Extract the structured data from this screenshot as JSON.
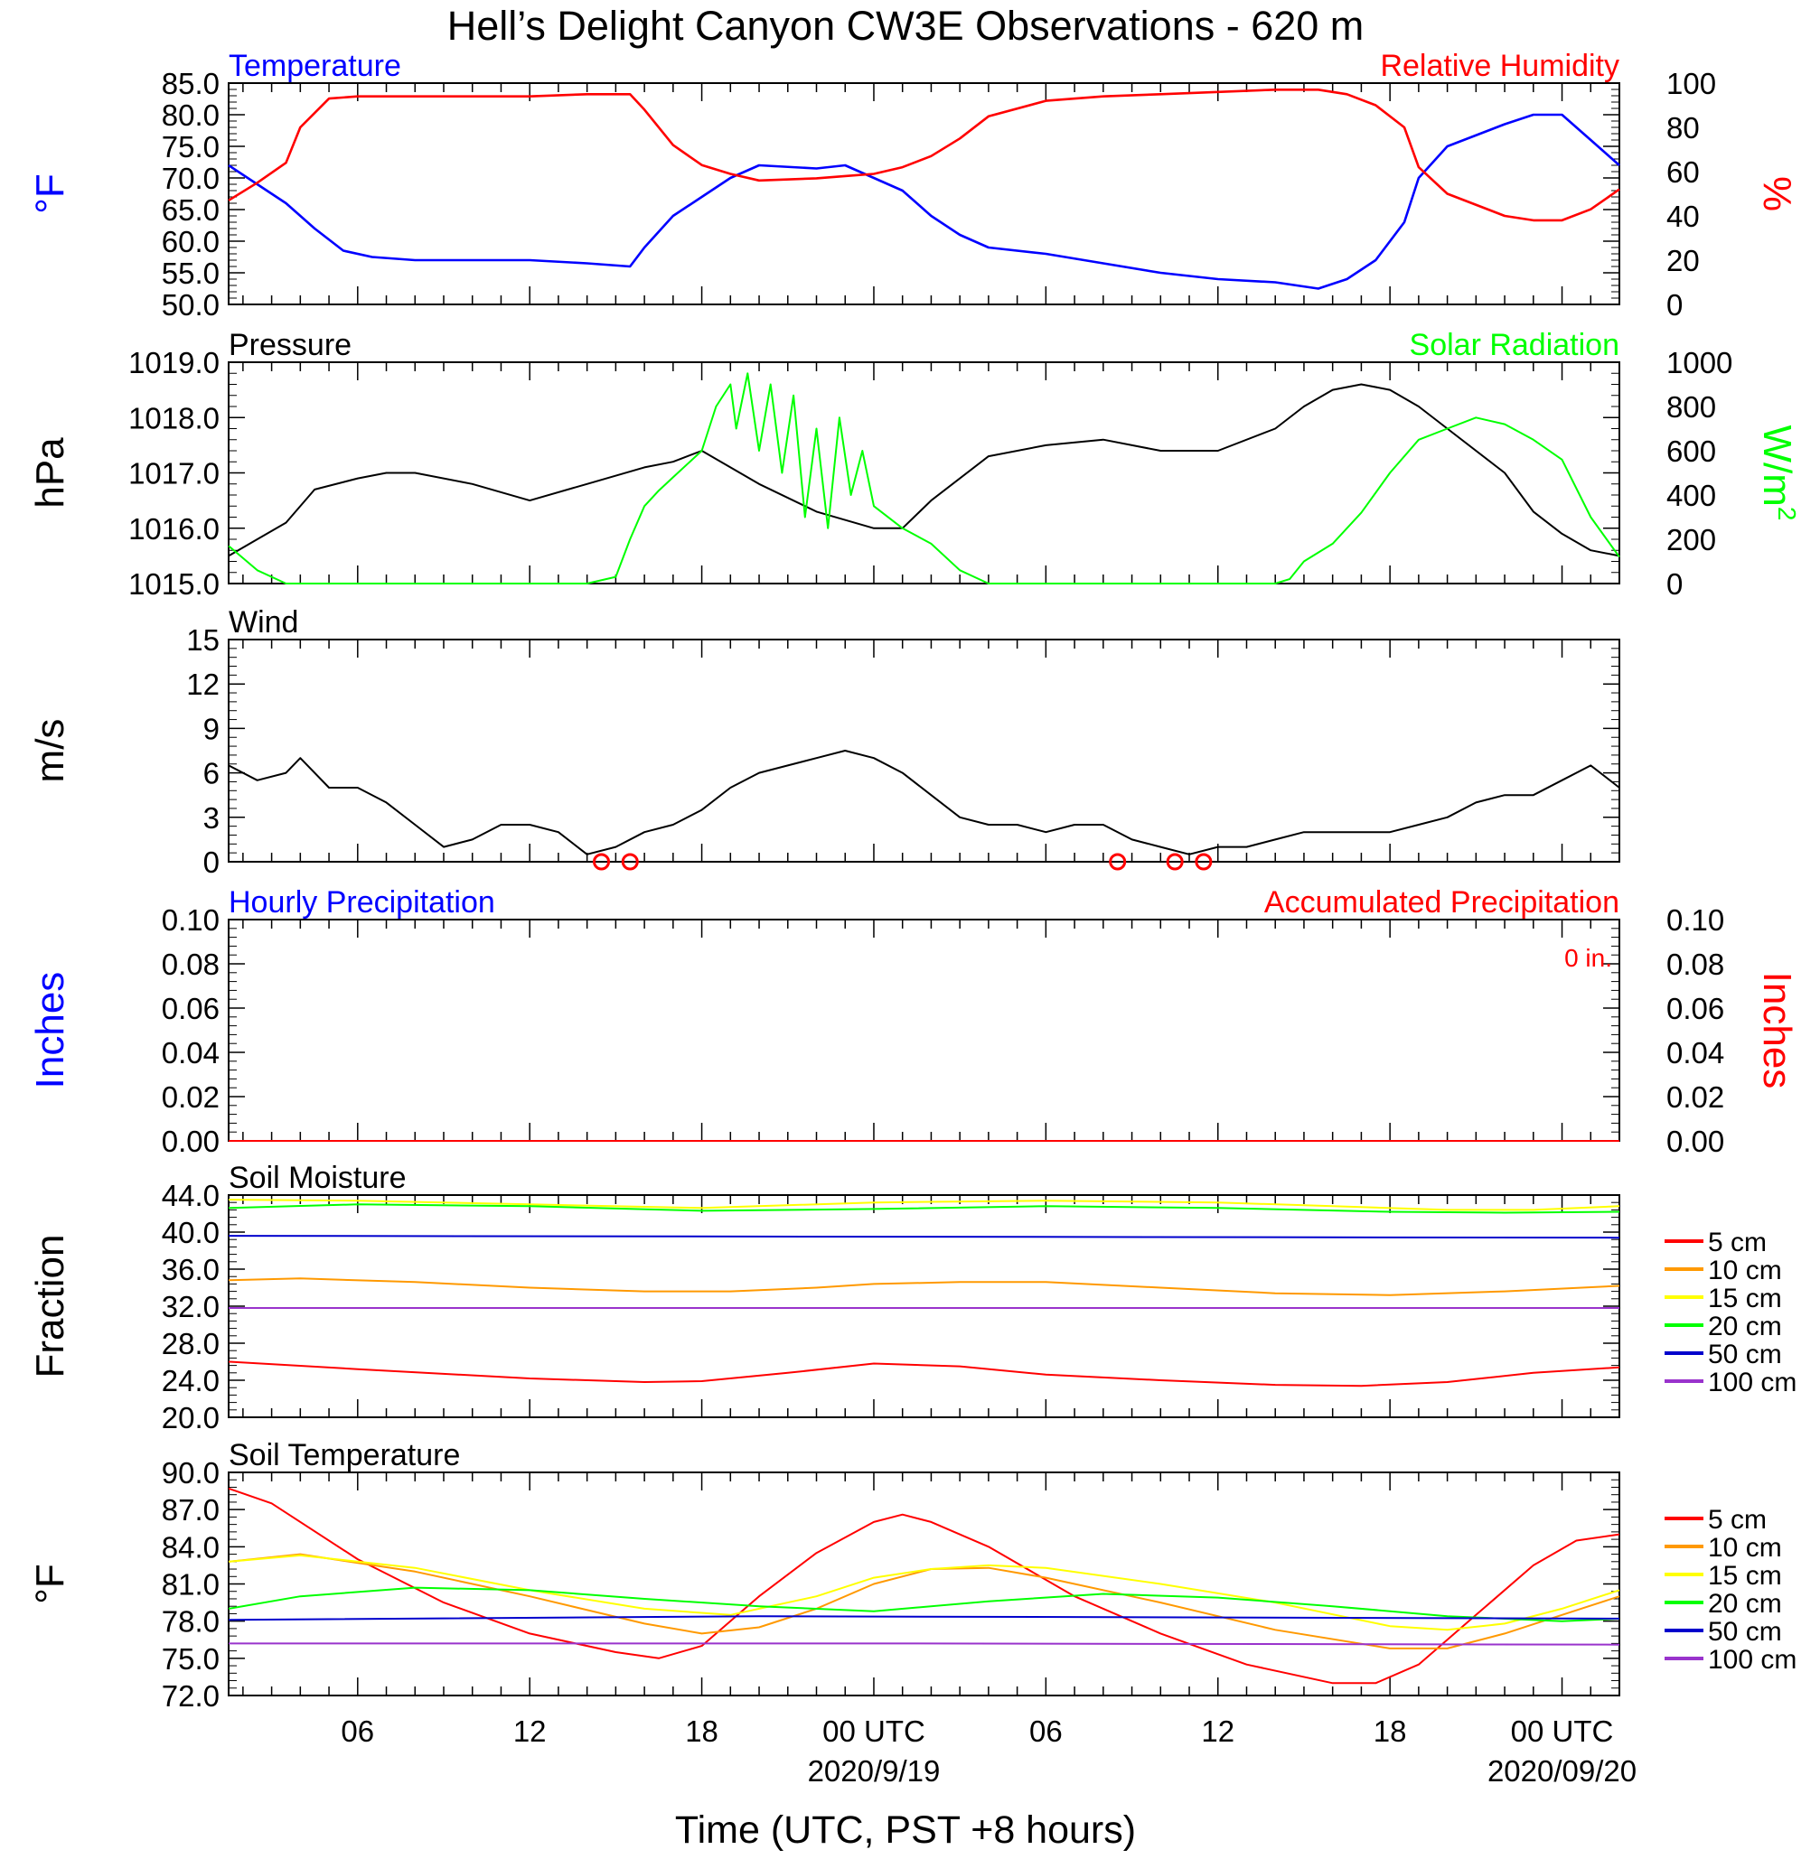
{
  "title": "Hell’s Delight Canyon CW3E Observations - 620 m",
  "xlabel": "Time (UTC, PST +8 hours)",
  "x_range_hours": [
    1.5,
    50
  ],
  "x_ticks": [
    {
      "h": 6,
      "label": "06"
    },
    {
      "h": 12,
      "label": "12"
    },
    {
      "h": 18,
      "label": "18"
    },
    {
      "h": 24,
      "label": "00 UTC",
      "date": "2020/9/19"
    },
    {
      "h": 30,
      "label": "06"
    },
    {
      "h": 36,
      "label": "12"
    },
    {
      "h": 42,
      "label": "18"
    },
    {
      "h": 48,
      "label": "00 UTC",
      "date": "2020/09/20"
    }
  ],
  "colors": {
    "blue": "#0000ff",
    "red": "#ff0000",
    "green": "#00ff00",
    "black": "#000000",
    "orange": "#ff9900",
    "yellow": "#ffff00",
    "purple": "#9933cc",
    "darkblue": "#0000cc"
  },
  "chart_data": [
    {
      "id": "temp_rh",
      "type": "line",
      "title_left": "Temperature",
      "title_right": "Relative Humidity",
      "ylabel_left": "°F",
      "ylabel_right": "%",
      "ylim_left": [
        50,
        85
      ],
      "yticks_left": [
        "50.0",
        "55.0",
        "60.0",
        "65.0",
        "70.0",
        "75.0",
        "80.0",
        "85.0"
      ],
      "ylim_right": [
        0,
        100
      ],
      "yticks_right": [
        "0",
        "20",
        "40",
        "60",
        "80",
        "100"
      ],
      "series": [
        {
          "name": "Temperature",
          "color": "blue",
          "axis": "left",
          "x": [
            1.5,
            2.5,
            3.5,
            4.5,
            5.5,
            6.5,
            8,
            10,
            12,
            14,
            15.5,
            16,
            17,
            18,
            19,
            20,
            22,
            23,
            24,
            25,
            26,
            27,
            28,
            30,
            32,
            34,
            36,
            38,
            39.5,
            40.5,
            41.5,
            42.5,
            43,
            44,
            46,
            47,
            48,
            49,
            50
          ],
          "y": [
            72,
            69,
            66,
            62,
            58.5,
            57.5,
            57,
            57,
            57,
            56.5,
            56,
            59,
            64,
            67,
            70,
            72,
            71.5,
            72,
            70,
            68,
            64,
            61,
            59,
            58,
            56.5,
            55,
            54,
            53.5,
            52.5,
            54,
            57,
            63,
            70,
            75,
            78.5,
            80,
            80,
            76,
            72
          ]
        },
        {
          "name": "Relative Humidity",
          "color": "red",
          "axis": "right",
          "x": [
            1.5,
            2.5,
            3.5,
            4,
            5,
            6,
            8,
            10,
            12,
            14,
            15.5,
            16,
            17,
            18,
            19,
            20,
            22,
            23,
            24,
            25,
            26,
            27,
            28,
            30,
            32,
            34,
            36,
            38,
            39.5,
            40.5,
            41.5,
            42.5,
            43,
            44,
            46,
            47,
            48,
            49,
            50
          ],
          "y": [
            47,
            55,
            64,
            80,
            93,
            94,
            94,
            94,
            94,
            95,
            95,
            88,
            72,
            63,
            59,
            56,
            57,
            58,
            59,
            62,
            67,
            75,
            85,
            92,
            94,
            95,
            96,
            97,
            97,
            95,
            90,
            80,
            62,
            50,
            40,
            38,
            38,
            43,
            52
          ]
        }
      ]
    },
    {
      "id": "pressure_solar",
      "type": "line",
      "title_left": "Pressure",
      "title_right": "Solar Radiation",
      "ylabel_left": "hPa",
      "ylabel_right": "W/m",
      "ylabel_right_sup": "2",
      "ylim_left": [
        1015,
        1019
      ],
      "yticks_left": [
        "1015.0",
        "1016.0",
        "1017.0",
        "1018.0",
        "1019.0"
      ],
      "ylim_right": [
        0,
        1000
      ],
      "yticks_right": [
        "0",
        "200",
        "400",
        "600",
        "800",
        "1000"
      ],
      "series": [
        {
          "name": "Pressure",
          "color": "black",
          "axis": "left",
          "x": [
            1.5,
            2.5,
            3.5,
            4.5,
            6,
            7,
            8,
            10,
            12,
            14,
            16,
            17,
            18,
            19,
            20,
            22,
            24,
            25,
            26,
            28,
            30,
            32,
            34,
            36,
            38,
            39,
            40,
            41,
            42,
            43,
            44,
            46,
            47,
            48,
            49,
            50
          ],
          "y": [
            1015.5,
            1015.8,
            1016.1,
            1016.7,
            1016.9,
            1017.0,
            1017.0,
            1016.8,
            1016.5,
            1016.8,
            1017.1,
            1017.2,
            1017.4,
            1017.1,
            1016.8,
            1016.3,
            1016,
            1016.0,
            1016.5,
            1017.3,
            1017.5,
            1017.6,
            1017.4,
            1017.4,
            1017.8,
            1018.2,
            1018.5,
            1018.6,
            1018.5,
            1018.2,
            1017.8,
            1017.0,
            1016.3,
            1015.9,
            1015.6,
            1015.5
          ]
        },
        {
          "name": "Solar Radiation",
          "color": "green",
          "axis": "right",
          "x": [
            1.5,
            2.5,
            3.5,
            14,
            15,
            15.5,
            16,
            16.5,
            17,
            18,
            18.5,
            19,
            19.2,
            19.6,
            20,
            20.4,
            20.8,
            21.2,
            21.6,
            22,
            22.4,
            22.8,
            23.2,
            23.6,
            24,
            25,
            26,
            27,
            28,
            38,
            38.5,
            39,
            40,
            41,
            42,
            43,
            44,
            45,
            46,
            47,
            48,
            49,
            50
          ],
          "y": [
            170,
            60,
            0,
            0,
            30,
            200,
            350,
            420,
            480,
            600,
            800,
            900,
            700,
            950,
            600,
            900,
            500,
            850,
            300,
            700,
            250,
            750,
            400,
            600,
            350,
            250,
            180,
            60,
            0,
            0,
            20,
            100,
            180,
            320,
            500,
            650,
            700,
            750,
            720,
            650,
            560,
            300,
            120
          ]
        }
      ]
    },
    {
      "id": "wind",
      "type": "line",
      "title_left": "Wind",
      "ylabel_left": "m/s",
      "ylim_left": [
        0,
        15
      ],
      "yticks_left": [
        "0",
        "3",
        "6",
        "9",
        "12",
        "15"
      ],
      "series": [
        {
          "name": "Wind",
          "color": "black",
          "axis": "left",
          "x": [
            1.5,
            2.5,
            3.5,
            4,
            5,
            6,
            7,
            8,
            9,
            10,
            11,
            12,
            13,
            14,
            15,
            16,
            17,
            18,
            19,
            20,
            21,
            22,
            23,
            24,
            25,
            26,
            27,
            28,
            29,
            30,
            31,
            32,
            33,
            34,
            35,
            36,
            37,
            38,
            39,
            40,
            41,
            42,
            43,
            44,
            45,
            46,
            47,
            48,
            49,
            50
          ],
          "y": [
            6.5,
            5.5,
            6.0,
            7.0,
            5.0,
            5.0,
            4.0,
            2.5,
            1.0,
            1.5,
            2.5,
            2.5,
            2.0,
            0.5,
            1.0,
            2.0,
            2.5,
            3.5,
            5.0,
            6.0,
            6.5,
            7.0,
            7.5,
            7.0,
            6.0,
            4.5,
            3.0,
            2.5,
            2.5,
            2.0,
            2.5,
            2.5,
            1.5,
            1.0,
            0.5,
            1.0,
            1.0,
            1.5,
            2.0,
            2.0,
            2.0,
            2.0,
            2.5,
            3.0,
            4.0,
            4.5,
            4.5,
            5.5,
            6.5,
            5.0
          ]
        },
        {
          "name": "Calm",
          "color": "red",
          "axis": "left",
          "x": [
            14.5,
            15.5,
            32.5,
            34.5,
            35.5
          ],
          "y": [
            0,
            0,
            0,
            0,
            0
          ]
        }
      ]
    },
    {
      "id": "precip",
      "type": "line",
      "title_left": "Hourly Precipitation",
      "title_right": "Accumulated Precipitation",
      "annotation": "0 in.",
      "ylabel_left": "Inches",
      "ylabel_right": "Inches",
      "ylim_left": [
        0,
        0.1
      ],
      "yticks_left": [
        "0.00",
        "0.02",
        "0.04",
        "0.06",
        "0.08",
        "0.10"
      ],
      "ylim_right": [
        0,
        0.1
      ],
      "yticks_right": [
        "0.00",
        "0.02",
        "0.04",
        "0.06",
        "0.08",
        "0.10"
      ],
      "series": [
        {
          "name": "Accumulated Precipitation",
          "color": "red",
          "axis": "left",
          "x": [
            1.5,
            50
          ],
          "y": [
            0,
            0
          ]
        }
      ]
    },
    {
      "id": "soil_moisture",
      "type": "line",
      "title_left": "Soil Moisture",
      "ylabel_left": "Fraction",
      "ylim_left": [
        20,
        44
      ],
      "yticks_left": [
        "20.0",
        "24.0",
        "28.0",
        "32.0",
        "36.0",
        "40.0",
        "44.0"
      ],
      "legend": [
        "5 cm",
        "10 cm",
        "15 cm",
        "20 cm",
        "50 cm",
        "100 cm"
      ],
      "series": [
        {
          "name": "5 cm",
          "color": "red",
          "axis": "left",
          "x": [
            1.5,
            6,
            12,
            16,
            18,
            21,
            24,
            27,
            30,
            34,
            38,
            41,
            44,
            47,
            50
          ],
          "y": [
            26,
            25.2,
            24.2,
            23.8,
            23.9,
            24.8,
            25.8,
            25.5,
            24.6,
            24,
            23.5,
            23.4,
            23.8,
            24.8,
            25.4
          ]
        },
        {
          "name": "10 cm",
          "color": "orange",
          "axis": "left",
          "x": [
            1.5,
            4,
            8,
            12,
            16,
            19,
            22,
            24,
            27,
            30,
            34,
            38,
            42,
            46,
            50
          ],
          "y": [
            34.8,
            35,
            34.6,
            34,
            33.6,
            33.6,
            34,
            34.4,
            34.6,
            34.6,
            34,
            33.4,
            33.2,
            33.6,
            34.2
          ]
        },
        {
          "name": "15 cm",
          "color": "yellow",
          "axis": "left",
          "x": [
            1.5,
            6,
            12,
            18,
            24,
            30,
            36,
            40,
            44,
            47,
            50
          ],
          "y": [
            43.5,
            43.4,
            43,
            42.6,
            43.2,
            43.4,
            43.2,
            42.8,
            42.4,
            42.4,
            42.8
          ]
        },
        {
          "name": "20 cm",
          "color": "green",
          "axis": "left",
          "x": [
            1.5,
            6,
            12,
            18,
            24,
            30,
            36,
            42,
            46,
            50
          ],
          "y": [
            42.6,
            43,
            42.8,
            42.3,
            42.5,
            42.8,
            42.6,
            42.2,
            42.1,
            42.2
          ]
        },
        {
          "name": "50 cm",
          "color": "darkblue",
          "axis": "left",
          "x": [
            1.5,
            25,
            50
          ],
          "y": [
            39.6,
            39.5,
            39.4
          ]
        },
        {
          "name": "100 cm",
          "color": "purple",
          "axis": "left",
          "x": [
            1.5,
            25,
            50
          ],
          "y": [
            31.8,
            31.8,
            31.8
          ]
        }
      ]
    },
    {
      "id": "soil_temp",
      "type": "line",
      "title_left": "Soil Temperature",
      "ylabel_left": "°F",
      "ylim_left": [
        72,
        90
      ],
      "yticks_left": [
        "72.0",
        "75.0",
        "78.0",
        "81.0",
        "84.0",
        "87.0",
        "90.0"
      ],
      "legend": [
        "5 cm",
        "10 cm",
        "15 cm",
        "20 cm",
        "50 cm",
        "100 cm"
      ],
      "series": [
        {
          "name": "5 cm",
          "color": "red",
          "axis": "left",
          "x": [
            1.5,
            3,
            6,
            9,
            12,
            15,
            16.5,
            18,
            20,
            22,
            24,
            25,
            26,
            28,
            31,
            34,
            37,
            40,
            41.5,
            43,
            45,
            47,
            48.5,
            50
          ],
          "y": [
            88.7,
            87.5,
            83,
            79.5,
            77,
            75.5,
            75,
            76,
            80,
            83.5,
            86,
            86.6,
            86,
            84,
            80,
            77,
            74.5,
            73,
            73,
            74.5,
            78.5,
            82.5,
            84.5,
            85
          ]
        },
        {
          "name": "10 cm",
          "color": "orange",
          "axis": "left",
          "x": [
            1.5,
            4,
            8,
            12,
            16,
            18,
            20,
            22,
            24,
            26,
            28,
            30,
            34,
            38,
            42,
            44,
            46,
            48,
            50
          ],
          "y": [
            82.8,
            83.4,
            82,
            80,
            77.8,
            77,
            77.5,
            79,
            81,
            82.2,
            82.3,
            81.5,
            79.5,
            77.3,
            75.8,
            75.8,
            77,
            78.5,
            80
          ]
        },
        {
          "name": "15 cm",
          "color": "yellow",
          "axis": "left",
          "x": [
            1.5,
            4,
            8,
            12,
            16,
            19,
            22,
            24,
            26,
            28,
            30,
            34,
            38,
            42,
            44,
            46,
            48,
            50
          ],
          "y": [
            82.8,
            83.3,
            82.3,
            80.5,
            79,
            78.5,
            80,
            81.5,
            82.2,
            82.5,
            82.3,
            81,
            79.5,
            77.6,
            77.3,
            77.8,
            79,
            80.5
          ]
        },
        {
          "name": "20 cm",
          "color": "green",
          "axis": "left",
          "x": [
            1.5,
            4,
            8,
            12,
            16,
            20,
            24,
            28,
            32,
            36,
            40,
            44,
            48,
            50
          ],
          "y": [
            79,
            80,
            80.7,
            80.5,
            79.8,
            79.2,
            78.8,
            79.6,
            80.2,
            79.9,
            79.2,
            78.4,
            78,
            78.2
          ]
        },
        {
          "name": "50 cm",
          "color": "darkblue",
          "axis": "left",
          "x": [
            1.5,
            20,
            50
          ],
          "y": [
            78.1,
            78.4,
            78.2
          ]
        },
        {
          "name": "100 cm",
          "color": "purple",
          "axis": "left",
          "x": [
            1.5,
            25,
            50
          ],
          "y": [
            76.2,
            76.2,
            76.1
          ]
        }
      ]
    }
  ]
}
